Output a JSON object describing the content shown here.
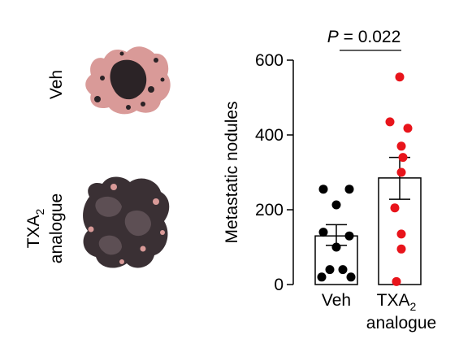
{
  "images": {
    "rows": [
      {
        "label": "Veh"
      },
      {
        "label_main": "TXA",
        "label_sub": "2",
        "label_line2": "analogue"
      }
    ]
  },
  "colors": {
    "veh_points": "#000000",
    "txa_points": "#e8141b",
    "tissue_pink": "#d99a98",
    "tissue_dark": "#2b2326"
  },
  "chart_data": {
    "type": "bar",
    "ylabel": "Metastatic nodules",
    "ylim": [
      0,
      600
    ],
    "yticks": [
      0,
      200,
      400,
      600
    ],
    "categories": [
      {
        "label": "Veh"
      },
      {
        "label_main": "TXA",
        "label_sub": "2",
        "label_line2": "analogue"
      }
    ],
    "bars": [
      {
        "mean": 130,
        "sem_low": 105,
        "sem_high": 160,
        "points": [
          255,
          255,
          213,
          140,
          130,
          100,
          40,
          40,
          20,
          20
        ]
      },
      {
        "mean": 285,
        "sem_low": 228,
        "sem_high": 340,
        "points": [
          555,
          435,
          418,
          370,
          340,
          300,
          205,
          135,
          95,
          8
        ]
      }
    ],
    "annotation": {
      "text_italic": "P",
      "text_rest": " = 0.022"
    }
  }
}
